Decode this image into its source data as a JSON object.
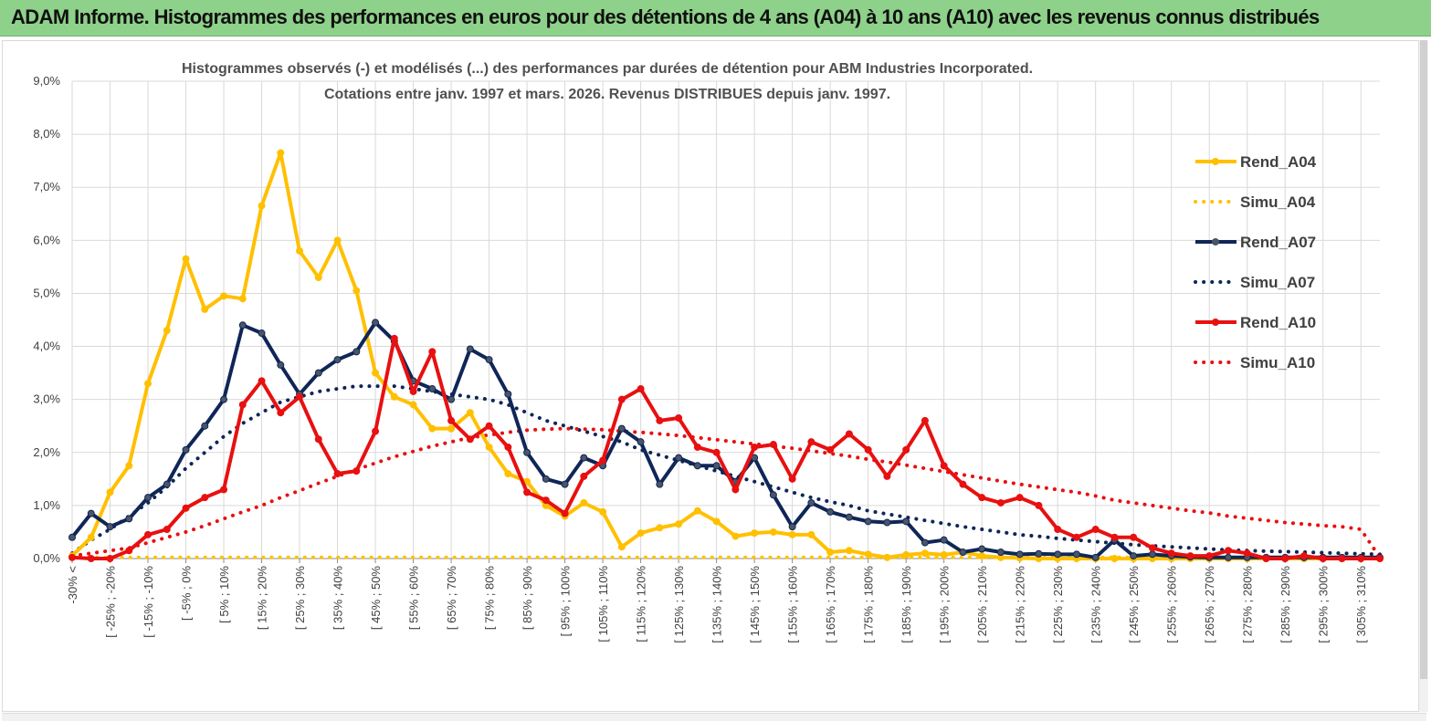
{
  "header": {
    "title": "ADAM Informe. Histogrammes des performances en euros pour des détentions de 4 ans (A04) à 10 ans (A10) avec les revenus connus distribués"
  },
  "chart_data": {
    "type": "line",
    "title_line1": "Histogrammes observés (-) et modélisés (...) des performances par durées de détention pour ABM Industries Incorporated.",
    "title_line2": "Cotations entre janv. 1997 et mars. 2026. Revenus DISTRIBUES depuis janv. 1997.",
    "xlabel": "",
    "ylabel": "",
    "ylim": [
      0,
      9
    ],
    "y_ticks": [
      "0,0%",
      "1,0%",
      "2,0%",
      "3,0%",
      "4,0%",
      "5,0%",
      "6,0%",
      "7,0%",
      "8,0%",
      "9,0%"
    ],
    "grid": true,
    "legend_position": "right",
    "x_tick_labels": [
      "-30% <",
      "[ -25% ; -20%",
      "[ -15% ; -10%",
      "[ -5% ; 0%",
      "[ 5% ; 10%",
      "[ 15% ; 20%",
      "[ 25% ; 30%",
      "[ 35% ; 40%",
      "[ 45% ; 50%",
      "[ 55% ; 60%",
      "[ 65% ; 70%",
      "[ 75% ; 80%",
      "[ 85% ; 90%",
      "[ 95% ; 100%",
      "[ 105% ; 110%",
      "[ 115% ; 120%",
      "[ 125% ; 130%",
      "[ 135% ; 140%",
      "[ 145% ; 150%",
      "[ 155% ; 160%",
      "[ 165% ; 170%",
      "[ 175% ; 180%",
      "[ 185% ; 190%",
      "[ 195% ; 200%",
      "[ 205% ; 210%",
      "[ 215% ; 220%",
      "[ 225% ; 230%",
      "[ 235% ; 240%",
      "[ 245% ; 250%",
      "[ 255% ; 260%",
      "[ 265% ; 270%",
      "[ 275% ; 280%",
      "[ 285% ; 290%",
      "[ 295% ; 300%",
      "[ 305% ; 310%"
    ],
    "x_tick_positions": [
      0,
      2,
      4,
      6,
      8,
      10,
      12,
      14,
      16,
      18,
      20,
      22,
      24,
      26,
      28,
      30,
      32,
      34,
      36,
      38,
      40,
      42,
      44,
      46,
      48,
      50,
      52,
      54,
      56,
      58,
      60,
      62,
      64,
      66,
      68
    ],
    "n_categories": 70,
    "series": [
      {
        "name": "Rend_A04",
        "style": "solid",
        "color": "#ffc000",
        "values": [
          0.05,
          0.4,
          1.25,
          1.75,
          3.3,
          4.3,
          5.65,
          4.7,
          4.95,
          4.9,
          6.65,
          7.65,
          5.8,
          5.3,
          6.0,
          5.05,
          3.5,
          3.05,
          2.9,
          2.45,
          2.45,
          2.75,
          2.1,
          1.6,
          1.45,
          1.0,
          0.8,
          1.05,
          0.88,
          0.22,
          0.48,
          0.58,
          0.65,
          0.9,
          0.7,
          0.42,
          0.48,
          0.5,
          0.45,
          0.45,
          0.12,
          0.15,
          0.08,
          0.02,
          0.07,
          0.1,
          0.07,
          0.12,
          0.05,
          0.02,
          0.01,
          0.0,
          0.0,
          0.0,
          0.0,
          0.0,
          0.0,
          0.0,
          0.0,
          0.0,
          0.0,
          0.0,
          0.0,
          0.0,
          0.0,
          0.0,
          0.0,
          0.0,
          0.0,
          0.0
        ]
      },
      {
        "name": "Simu_A04",
        "style": "dotted",
        "color": "#ffc000",
        "values": [
          0.02,
          0.02,
          0.02,
          0.02,
          0.02,
          0.02,
          0.02,
          0.02,
          0.02,
          0.02,
          0.02,
          0.02,
          0.02,
          0.02,
          0.02,
          0.02,
          0.02,
          0.02,
          0.02,
          0.02,
          0.02,
          0.02,
          0.02,
          0.02,
          0.02,
          0.02,
          0.02,
          0.02,
          0.02,
          0.02,
          0.02,
          0.02,
          0.02,
          0.02,
          0.02,
          0.02,
          0.02,
          0.02,
          0.02,
          0.02,
          0.02,
          0.02,
          0.02,
          0.02,
          0.02,
          0.02,
          0.02,
          0.02,
          0.02,
          0.02,
          0.02,
          0.02,
          0.02,
          0.02,
          0.02,
          0.02,
          0.02,
          0.02,
          0.02,
          0.02,
          0.02,
          0.02,
          0.02,
          0.02,
          0.02,
          0.02,
          0.02,
          0.02,
          0.02,
          0.02
        ]
      },
      {
        "name": "Rend_A07",
        "style": "solid",
        "color": "#0f2657",
        "values": [
          0.4,
          0.85,
          0.6,
          0.75,
          1.15,
          1.4,
          2.05,
          2.5,
          3.0,
          4.4,
          4.25,
          3.65,
          3.1,
          3.5,
          3.75,
          3.9,
          4.45,
          4.1,
          3.35,
          3.2,
          3.0,
          3.95,
          3.75,
          3.1,
          2.0,
          1.5,
          1.4,
          1.9,
          1.75,
          2.45,
          2.2,
          1.4,
          1.9,
          1.75,
          1.75,
          1.45,
          1.9,
          1.2,
          0.6,
          1.05,
          0.88,
          0.78,
          0.7,
          0.68,
          0.7,
          0.3,
          0.35,
          0.12,
          0.18,
          0.12,
          0.08,
          0.09,
          0.08,
          0.08,
          0.02,
          0.35,
          0.05,
          0.08,
          0.05,
          0.03,
          0.02,
          0.02,
          0.02,
          0.02,
          0.02,
          0.02,
          0.02,
          0.02,
          0.02,
          0.02
        ]
      },
      {
        "name": "Simu_A07",
        "style": "dotted",
        "color": "#0f2657",
        "values": [
          0.1,
          0.35,
          0.55,
          0.8,
          1.05,
          1.35,
          1.7,
          2.0,
          2.3,
          2.55,
          2.75,
          2.95,
          3.05,
          3.15,
          3.2,
          3.25,
          3.25,
          3.25,
          3.2,
          3.15,
          3.1,
          3.05,
          3.0,
          2.9,
          2.75,
          2.6,
          2.5,
          2.4,
          2.3,
          2.2,
          2.05,
          1.95,
          1.85,
          1.75,
          1.65,
          1.55,
          1.45,
          1.35,
          1.25,
          1.15,
          1.07,
          1.0,
          0.9,
          0.84,
          0.78,
          0.72,
          0.66,
          0.6,
          0.55,
          0.5,
          0.45,
          0.42,
          0.38,
          0.35,
          0.32,
          0.29,
          0.26,
          0.24,
          0.22,
          0.2,
          0.18,
          0.16,
          0.15,
          0.14,
          0.13,
          0.12,
          0.11,
          0.1,
          0.09,
          0.08
        ]
      },
      {
        "name": "Rend_A10",
        "style": "solid",
        "color": "#e81010",
        "values": [
          0.02,
          0.0,
          0.0,
          0.15,
          0.45,
          0.55,
          0.95,
          1.15,
          1.3,
          2.9,
          3.35,
          2.75,
          3.05,
          2.25,
          1.6,
          1.65,
          2.4,
          4.15,
          3.15,
          3.9,
          2.6,
          2.25,
          2.5,
          2.1,
          1.25,
          1.1,
          0.85,
          1.55,
          1.85,
          3.0,
          3.2,
          2.6,
          2.65,
          2.1,
          2.0,
          1.3,
          2.1,
          2.15,
          1.5,
          2.2,
          2.05,
          2.35,
          2.05,
          1.55,
          2.05,
          2.6,
          1.75,
          1.4,
          1.15,
          1.05,
          1.15,
          1.0,
          0.55,
          0.4,
          0.55,
          0.4,
          0.4,
          0.2,
          0.1,
          0.05,
          0.05,
          0.15,
          0.1,
          0.0,
          0.0,
          0.05,
          0.0,
          0.0,
          0.0,
          0.0
        ]
      },
      {
        "name": "Simu_A10",
        "style": "dotted",
        "color": "#e81010",
        "values": [
          0.05,
          0.1,
          0.15,
          0.2,
          0.3,
          0.4,
          0.5,
          0.62,
          0.75,
          0.88,
          1.0,
          1.15,
          1.28,
          1.42,
          1.55,
          1.68,
          1.8,
          1.92,
          2.02,
          2.12,
          2.2,
          2.28,
          2.33,
          2.38,
          2.42,
          2.44,
          2.45,
          2.44,
          2.43,
          2.4,
          2.38,
          2.35,
          2.32,
          2.28,
          2.24,
          2.2,
          2.16,
          2.12,
          2.08,
          2.03,
          1.98,
          1.93,
          1.87,
          1.82,
          1.76,
          1.7,
          1.64,
          1.58,
          1.52,
          1.46,
          1.4,
          1.35,
          1.3,
          1.25,
          1.18,
          1.1,
          1.05,
          1.0,
          0.95,
          0.9,
          0.86,
          0.8,
          0.76,
          0.72,
          0.68,
          0.65,
          0.62,
          0.6,
          0.55,
          0.02
        ]
      }
    ]
  }
}
